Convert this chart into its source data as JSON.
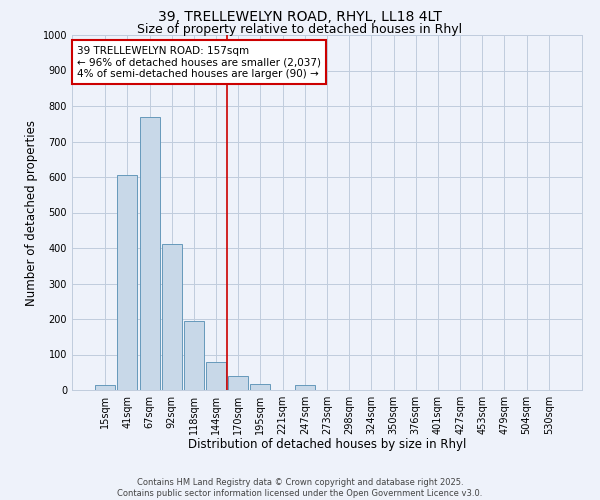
{
  "title_line1": "39, TRELLEWELYN ROAD, RHYL, LL18 4LT",
  "title_line2": "Size of property relative to detached houses in Rhyl",
  "xlabel": "Distribution of detached houses by size in Rhyl",
  "ylabel": "Number of detached properties",
  "bar_labels": [
    "15sqm",
    "41sqm",
    "67sqm",
    "92sqm",
    "118sqm",
    "144sqm",
    "170sqm",
    "195sqm",
    "221sqm",
    "247sqm",
    "273sqm",
    "298sqm",
    "324sqm",
    "350sqm",
    "376sqm",
    "401sqm",
    "427sqm",
    "453sqm",
    "479sqm",
    "504sqm",
    "530sqm"
  ],
  "bar_values": [
    15,
    607,
    770,
    412,
    193,
    80,
    40,
    18,
    0,
    13,
    0,
    0,
    0,
    0,
    0,
    0,
    0,
    0,
    0,
    0,
    0
  ],
  "bar_color": "#c8d8e8",
  "bar_edge_color": "#6699bb",
  "vline_x": 5.5,
  "vline_color": "#cc0000",
  "ylim": [
    0,
    1000
  ],
  "yticks": [
    0,
    100,
    200,
    300,
    400,
    500,
    600,
    700,
    800,
    900,
    1000
  ],
  "annotation_box_text": "39 TRELLEWELYN ROAD: 157sqm\n← 96% of detached houses are smaller (2,037)\n4% of semi-detached houses are larger (90) →",
  "grid_color": "#c0ccdd",
  "background_color": "#eef2fa",
  "footer_text": "Contains HM Land Registry data © Crown copyright and database right 2025.\nContains public sector information licensed under the Open Government Licence v3.0.",
  "title_fontsize": 10,
  "subtitle_fontsize": 9,
  "axis_label_fontsize": 8.5,
  "tick_fontsize": 7,
  "annotation_fontsize": 7.5,
  "footer_fontsize": 6
}
